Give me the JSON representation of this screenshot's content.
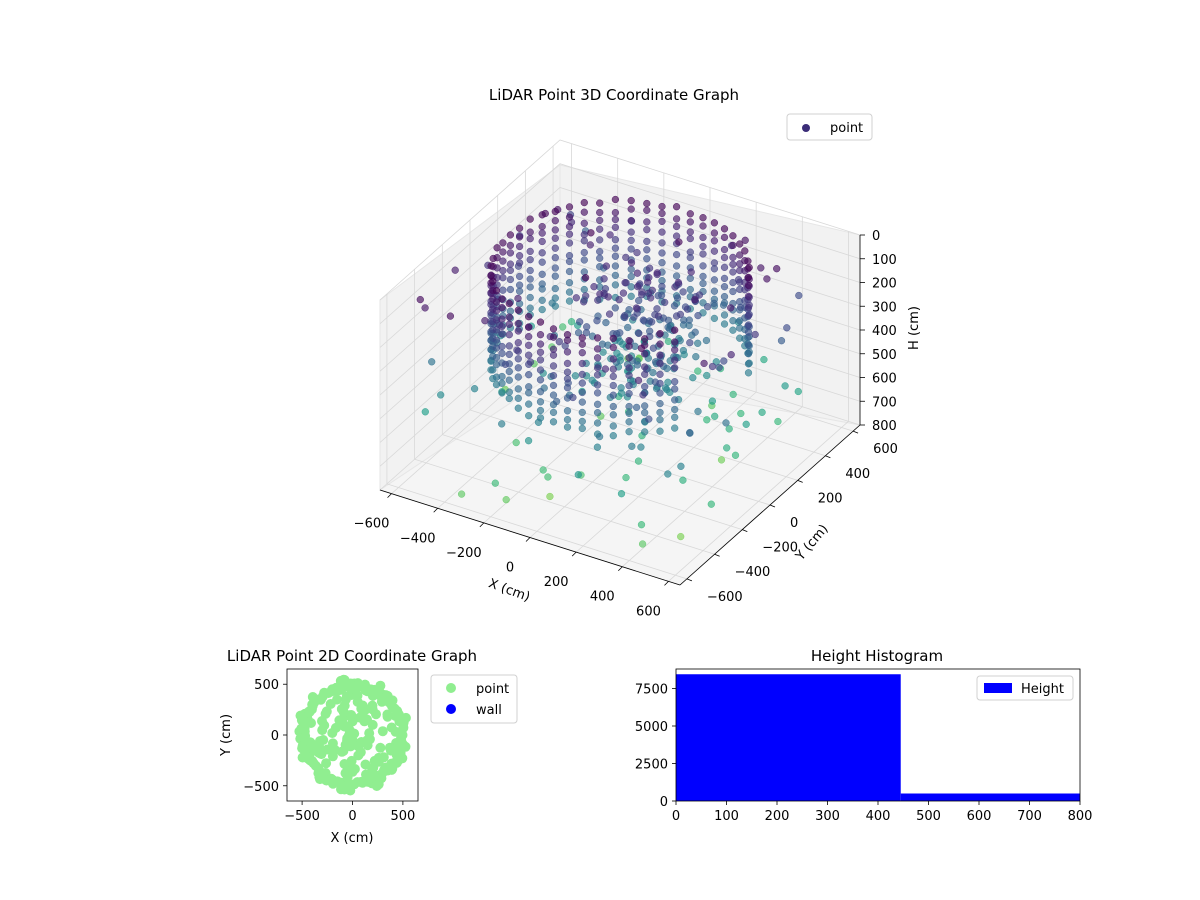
{
  "chart_data": [
    {
      "type": "scatter",
      "projection": "3d",
      "title": "LiDAR Point 3D Coordinate Graph",
      "xlabel": "X (cm)",
      "ylabel": "Y (cm)",
      "zlabel": "H (cm)",
      "xlim": [
        -650,
        650
      ],
      "ylim": [
        -650,
        650
      ],
      "zlim": [
        800,
        0
      ],
      "z_axis_inverted": true,
      "x_ticks": [
        "−600",
        "−400",
        "−200",
        "0",
        "200",
        "400",
        "600"
      ],
      "y_ticks": [
        "−600",
        "−400",
        "−200",
        "0",
        "200",
        "400",
        "600"
      ],
      "z_ticks": [
        "0",
        "100",
        "200",
        "300",
        "400",
        "500",
        "600",
        "700",
        "800"
      ],
      "legend": [
        "point"
      ],
      "legend_position": "top-right",
      "colormap": "viridis (by height)",
      "grid": true,
      "series": [
        {
          "name": "point",
          "note_values_estimated": true,
          "circular_wall": {
            "radius": 480,
            "h_min": 0,
            "h_max": 430,
            "arc_degrees": [
              25,
              330
            ]
          },
          "central_cluster": {
            "x_range": [
              -150,
              250
            ],
            "y_range": [
              -100,
              300
            ],
            "h_range": [
              100,
              500
            ]
          },
          "samples": [
            {
              "x": -450,
              "y": 300,
              "h": 50
            },
            {
              "x": -420,
              "y": 350,
              "h": 120
            },
            {
              "x": -500,
              "y": 100,
              "h": 200
            },
            {
              "x": 400,
              "y": 350,
              "h": 60
            },
            {
              "x": 480,
              "y": -50,
              "h": 220
            },
            {
              "x": 300,
              "y": -380,
              "h": 300
            },
            {
              "x": -100,
              "y": -480,
              "h": 180
            },
            {
              "x": 150,
              "y": 50,
              "h": 350
            },
            {
              "x": -50,
              "y": -100,
              "h": 450
            },
            {
              "x": 200,
              "y": -200,
              "h": 650
            },
            {
              "x": -300,
              "y": -250,
              "h": 700
            },
            {
              "x": 350,
              "y": 150,
              "h": 780
            }
          ]
        }
      ]
    },
    {
      "type": "scatter",
      "title": "LiDAR Point 2D Coordinate Graph",
      "xlabel": "X (cm)",
      "ylabel": "Y (cm)",
      "xlim": [
        -650,
        650
      ],
      "ylim": [
        -650,
        650
      ],
      "x_ticks": [
        "−500",
        "0",
        "500"
      ],
      "y_ticks": [
        "−500",
        "0",
        "500"
      ],
      "legend": [
        "point",
        "wall"
      ],
      "legend_position": "outside-right",
      "colors": {
        "point": "#90ee90",
        "wall": "#0000ff"
      },
      "series": [
        {
          "name": "point",
          "note_values_estimated": true,
          "samples": [
            {
              "x": -480,
              "y": 100
            },
            {
              "x": -400,
              "y": 300
            },
            {
              "x": -200,
              "y": 450
            },
            {
              "x": 0,
              "y": 480
            },
            {
              "x": 250,
              "y": 420
            },
            {
              "x": 450,
              "y": 200
            },
            {
              "x": 480,
              "y": -100
            },
            {
              "x": 350,
              "y": -350
            },
            {
              "x": 100,
              "y": -470
            },
            {
              "x": -200,
              "y": -440
            },
            {
              "x": -420,
              "y": -250
            },
            {
              "x": 0,
              "y": 0
            },
            {
              "x": -100,
              "y": 150
            },
            {
              "x": 150,
              "y": -100
            }
          ]
        },
        {
          "name": "wall",
          "samples": []
        }
      ]
    },
    {
      "type": "bar",
      "subtype": "histogram",
      "title": "Height Histogram",
      "xlim": [
        0,
        800
      ],
      "ylim": [
        0,
        8800
      ],
      "x_ticks": [
        "0",
        "100",
        "200",
        "300",
        "400",
        "500",
        "600",
        "700",
        "800"
      ],
      "y_ticks": [
        "0",
        "2500",
        "5000",
        "7500"
      ],
      "legend": [
        "Height"
      ],
      "legend_position": "top-right",
      "color": "#0000ff",
      "bins": [
        {
          "from": 0,
          "to": 445,
          "count": 8450
        },
        {
          "from": 445,
          "to": 800,
          "count": 500
        }
      ],
      "series": [
        {
          "name": "Height",
          "values": [
            8450,
            500
          ]
        }
      ]
    }
  ]
}
